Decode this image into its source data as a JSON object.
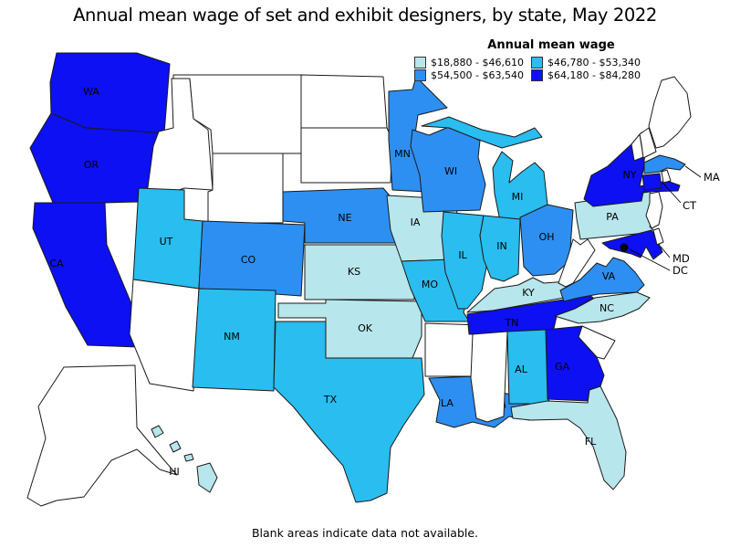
{
  "title": "Annual mean wage of set and exhibit designers, by state, May 2022",
  "footnote": "Blank areas indicate data not available.",
  "chart_data": {
    "type": "choropleth",
    "geography": "United States, by state",
    "legend_title": "Annual mean wage",
    "classes": [
      {
        "label": "$18,880 - $46,610",
        "color": "#b7e6ec"
      },
      {
        "label": "$46,780 - $53,340",
        "color": "#29bdf0"
      },
      {
        "label": "$54,500 - $63,540",
        "color": "#2d8ff2"
      },
      {
        "label": "$64,180 - $84,280",
        "color": "#0c10f2"
      }
    ],
    "no_data_color": "#ffffff",
    "marker_color": "#000000",
    "state_classes": {
      "WA": 3,
      "OR": 3,
      "CA": 3,
      "NV": null,
      "ID": null,
      "MT": null,
      "WY": null,
      "UT": 1,
      "CO": 2,
      "AZ": null,
      "NM": 1,
      "ND": null,
      "SD": null,
      "NE": 2,
      "KS": 0,
      "OK": 0,
      "TX": 1,
      "MN": 2,
      "IA": 0,
      "MO": 1,
      "AR": null,
      "LA": 2,
      "WI": 2,
      "MI": 1,
      "IL": 1,
      "IN": 1,
      "OH": 2,
      "KY": 0,
      "TN": 3,
      "WV": null,
      "VA": 2,
      "NC": 0,
      "SC": null,
      "GA": 3,
      "AL": 1,
      "MS": null,
      "FL": 0,
      "PA": 0,
      "NY": 3,
      "NJ": null,
      "MD": 3,
      "DE": null,
      "VT": null,
      "NH": null,
      "ME": null,
      "MA": 2,
      "RI": null,
      "CT": 3,
      "AK": null,
      "HI": 0,
      "DC": null
    },
    "labeled_states": [
      "WA",
      "OR",
      "CA",
      "UT",
      "CO",
      "NM",
      "TX",
      "KS",
      "OK",
      "NE",
      "IA",
      "MO",
      "MN",
      "WI",
      "MI",
      "IL",
      "IN",
      "OH",
      "KY",
      "TN",
      "AL",
      "GA",
      "FL",
      "NC",
      "VA",
      "PA",
      "NY",
      "LA",
      "HI"
    ],
    "callout_labels": [
      "MA",
      "CT",
      "MD",
      "DC"
    ]
  }
}
